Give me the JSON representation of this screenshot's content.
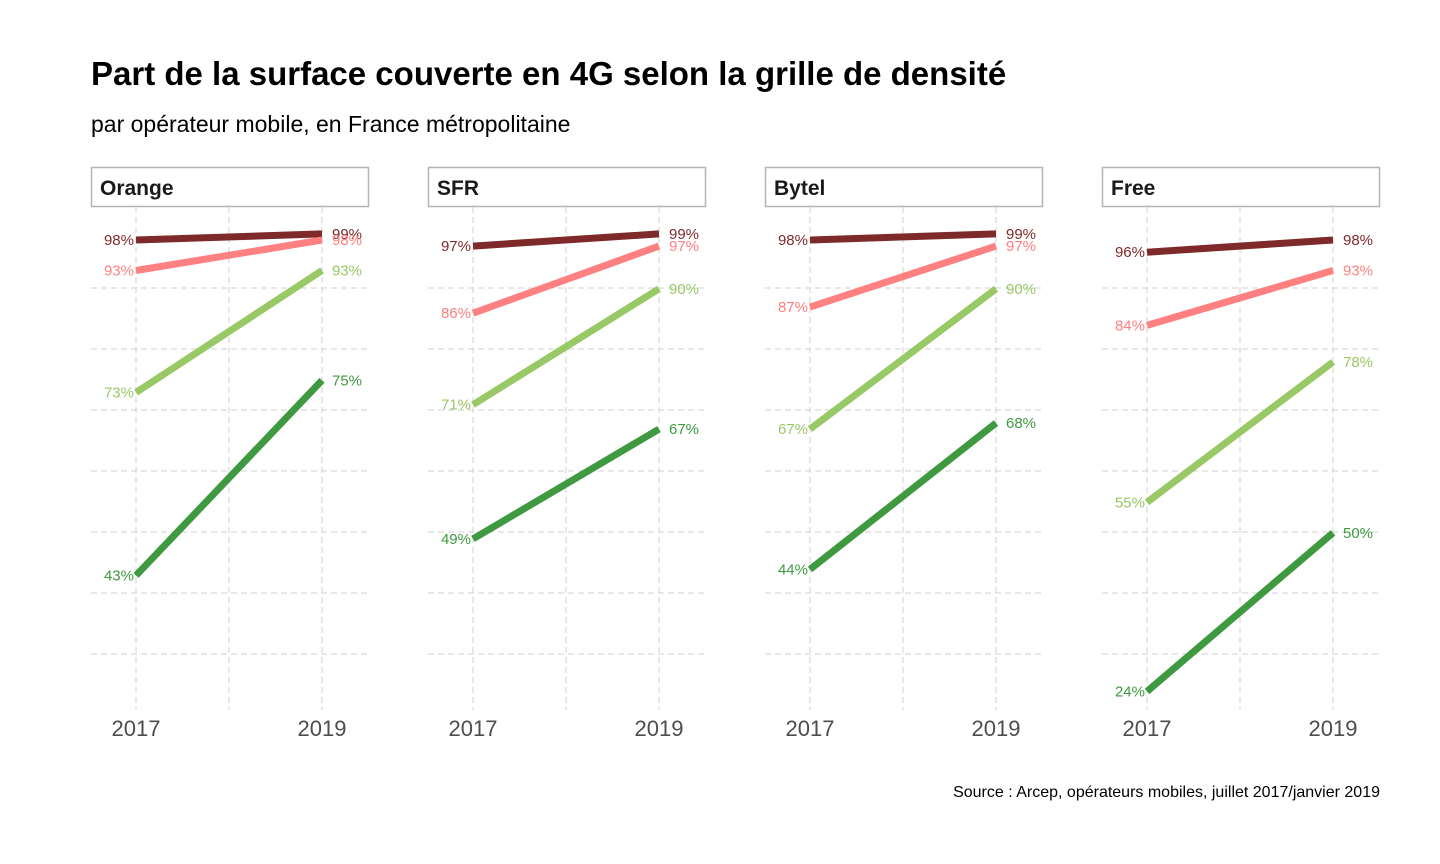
{
  "title": "Part de la surface couverte en 4G selon la grille de densité",
  "subtitle": "par opérateur mobile, en France métropolitaine",
  "caption": "Source : Arcep, opérateurs mobiles, juillet 2017/janvier 2019",
  "colors": {
    "series_1": "#7f2a2a",
    "series_2": "#ff8080",
    "series_3": "#99c866",
    "series_4": "#3f9941",
    "grid": "#d0d0d0",
    "strip_border": "#b5b5b5"
  },
  "chart_data": {
    "type": "line",
    "layout": "facet-grid",
    "x": [
      "2017",
      "2019"
    ],
    "ylim": [
      20,
      100
    ],
    "y_axis_labels_shown": false,
    "grid": true,
    "grid_style": "dashed",
    "legend": "none",
    "value_format": "percent",
    "facets": [
      {
        "name": "Orange",
        "series": [
          {
            "values": [
              98,
              99
            ]
          },
          {
            "values": [
              93,
              98
            ]
          },
          {
            "values": [
              73,
              93
            ]
          },
          {
            "values": [
              43,
              75
            ]
          }
        ]
      },
      {
        "name": "SFR",
        "series": [
          {
            "values": [
              97,
              99
            ]
          },
          {
            "values": [
              86,
              97
            ]
          },
          {
            "values": [
              71,
              90
            ]
          },
          {
            "values": [
              49,
              67
            ]
          }
        ]
      },
      {
        "name": "Bytel",
        "series": [
          {
            "values": [
              98,
              99
            ]
          },
          {
            "values": [
              87,
              97
            ]
          },
          {
            "values": [
              67,
              90
            ]
          },
          {
            "values": [
              44,
              68
            ]
          }
        ]
      },
      {
        "name": "Free",
        "series": [
          {
            "values": [
              96,
              98
            ]
          },
          {
            "values": [
              84,
              93
            ]
          },
          {
            "values": [
              55,
              78
            ]
          },
          {
            "values": [
              24,
              50
            ]
          }
        ]
      }
    ]
  }
}
